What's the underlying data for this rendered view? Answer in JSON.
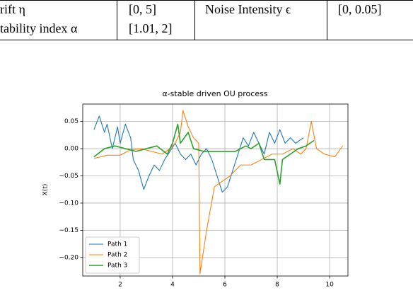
{
  "table": {
    "rows": [
      [
        "rift η",
        "[0, 5]",
        "Noise Intensity ϵ",
        "[0, 0.05]"
      ],
      [
        "tability index α",
        "[1.01, 2]"
      ]
    ]
  },
  "chart_data": {
    "type": "line",
    "title": "α-stable driven OU process",
    "y_label": "X(t)",
    "xlim": [
      0.57,
      10.7
    ],
    "ylim": [
      -0.234,
      0.082
    ],
    "xticks": [
      2,
      4,
      6,
      8,
      10
    ],
    "yticks": [
      0.05,
      {
        "value": 0,
        "label": "0.00"
      },
      {
        "value": -0.05,
        "label": "−0.05"
      },
      {
        "value": -0.1,
        "label": "−0.10"
      },
      {
        "value": -0.15,
        "label": "−0.15"
      },
      {
        "value": -0.2,
        "label": "−0.20"
      }
    ],
    "grid": true,
    "legend": "lower left",
    "series": [
      {
        "name": "Path 1",
        "color": "#1f77b4",
        "x": [
          1.0,
          1.2,
          1.4,
          1.5,
          1.7,
          1.9,
          2.0,
          2.2,
          2.4,
          2.5,
          2.7,
          2.9,
          3.1,
          3.3,
          3.5,
          3.7,
          3.9,
          4.1,
          4.3,
          4.5,
          4.7,
          4.9,
          5.1,
          5.3,
          5.5,
          5.7,
          5.9,
          6.1,
          6.3,
          6.5,
          6.7,
          6.9,
          7.1,
          7.3,
          7.5,
          7.7,
          7.9,
          8.1,
          8.3,
          8.5,
          8.7,
          9.0
        ],
        "values": [
          0.035,
          0.06,
          0.03,
          0.045,
          0.0,
          0.04,
          0.01,
          0.045,
          0.02,
          -0.02,
          -0.04,
          -0.075,
          -0.05,
          -0.03,
          -0.04,
          -0.02,
          -0.005,
          0.01,
          -0.01,
          -0.02,
          -0.01,
          -0.03,
          -0.01,
          0.0,
          -0.02,
          -0.05,
          -0.08,
          -0.07,
          -0.04,
          -0.01,
          0.02,
          0.005,
          0.03,
          0.01,
          -0.01,
          0.03,
          0.01,
          0.035,
          0.01,
          0.02,
          0.01,
          0.02
        ]
      },
      {
        "name": "Path 2",
        "color": "#ff7f0e",
        "x": [
          1.0,
          1.5,
          2.0,
          2.4,
          2.8,
          3.2,
          3.6,
          3.9,
          4.1,
          4.3,
          4.4,
          4.6,
          4.8,
          5.0,
          5.05,
          5.3,
          5.6,
          5.9,
          6.2,
          6.6,
          7.0,
          7.4,
          7.8,
          8.2,
          8.6,
          8.9,
          9.1,
          9.3,
          9.5,
          9.8,
          10.2,
          10.5
        ],
        "values": [
          -0.018,
          -0.012,
          -0.012,
          -0.002,
          0.0,
          -0.005,
          -0.01,
          0.0,
          0.01,
          0.03,
          0.07,
          0.04,
          0.02,
          0.01,
          -0.23,
          -0.15,
          -0.07,
          -0.06,
          -0.05,
          -0.03,
          -0.03,
          -0.02,
          -0.01,
          -0.01,
          0.0,
          -0.01,
          0.0,
          0.05,
          0.0,
          -0.01,
          -0.015,
          0.005
        ]
      },
      {
        "name": "Path 3",
        "color": "#2ca02c",
        "x": [
          1.0,
          1.4,
          1.8,
          2.2,
          2.6,
          3.0,
          3.4,
          3.8,
          4.0,
          4.2,
          4.3,
          4.6,
          4.8,
          5.2,
          5.6,
          6.0,
          6.4,
          6.8,
          7.0,
          7.3,
          7.5,
          7.7,
          7.9,
          8.1,
          8.2,
          8.5,
          8.8,
          9.1,
          9.4
        ],
        "values": [
          -0.015,
          0.0,
          0.005,
          0.0,
          -0.005,
          0.0,
          0.005,
          -0.01,
          0.01,
          0.045,
          0.01,
          0.03,
          0.0,
          -0.005,
          -0.005,
          -0.005,
          -0.005,
          0.005,
          0.0,
          0.01,
          -0.02,
          -0.02,
          -0.02,
          -0.065,
          -0.02,
          -0.01,
          0.0,
          0.005,
          0.015
        ]
      }
    ]
  }
}
